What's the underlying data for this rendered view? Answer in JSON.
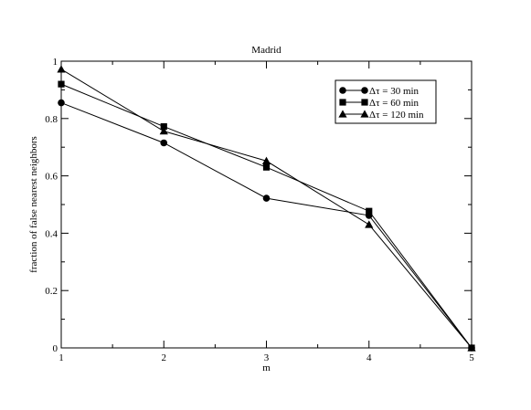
{
  "chart_data": {
    "type": "line",
    "title": "Madrid",
    "xlabel": "m",
    "ylabel": "fraction of false nearest neighbors",
    "x": [
      1,
      2,
      3,
      4,
      5
    ],
    "xlim": [
      1,
      5
    ],
    "ylim": [
      0,
      1
    ],
    "xticks": [
      "1",
      "2",
      "3",
      "4",
      "5"
    ],
    "yticks": [
      "0",
      "0.2",
      "0.4",
      "0.6",
      "0.8",
      "1"
    ],
    "grid": false,
    "legend_position": "top-right",
    "series": [
      {
        "name": "Δτ = 30 min",
        "marker": "circle",
        "values": [
          0.855,
          0.715,
          0.522,
          0.462,
          0.0
        ]
      },
      {
        "name": "Δτ = 60 min",
        "marker": "square",
        "values": [
          0.92,
          0.772,
          0.63,
          0.477,
          0.0
        ]
      },
      {
        "name": "Δτ = 120 min",
        "marker": "triangle",
        "values": [
          0.972,
          0.756,
          0.652,
          0.43,
          0.0
        ]
      }
    ],
    "colors": {
      "line": "#000000",
      "background": "#ffffff"
    }
  }
}
